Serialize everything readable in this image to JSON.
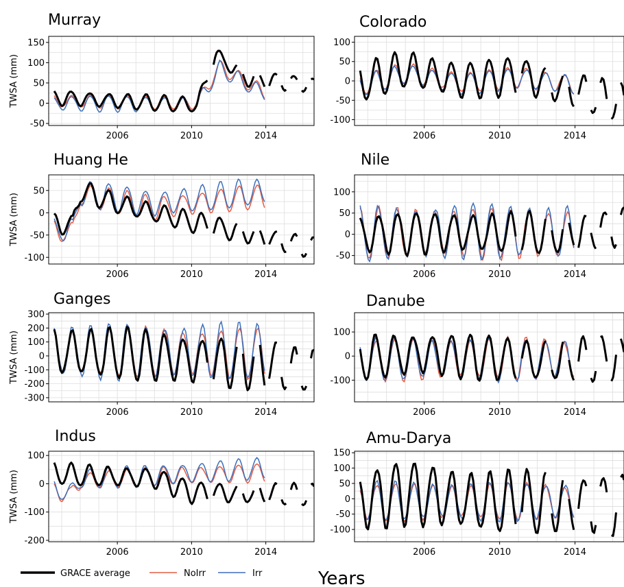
{
  "figure": {
    "xlabel": "Years",
    "legend": [
      {
        "label": "GRACE average",
        "color": "#000000"
      },
      {
        "label": "NoIrr",
        "color": "#e45c45"
      },
      {
        "label": "Irr",
        "color": "#3b6fba"
      }
    ],
    "legend_placement": "bottom-left",
    "grid": true
  },
  "chart_data": [
    {
      "type": "line",
      "title": "Murray",
      "ylabel": "TWSA (mm)",
      "xlim": [
        2002.3,
        2016.6
      ],
      "ylim": [
        -55,
        165
      ],
      "yticks": [
        -50,
        0,
        50,
        100,
        150
      ],
      "xticks": [
        2006,
        2010,
        2014
      ],
      "grace": {
        "mean": 20,
        "amp": 18,
        "season": 0.6,
        "drift": [
          [
            2002.3,
            15
          ],
          [
            2010.3,
            -5
          ],
          [
            2011.3,
            120
          ],
          [
            2013,
            60
          ],
          [
            2016.6,
            45
          ]
        ]
      },
      "noirr": {
        "amp": 16,
        "drift": [
          [
            2002.3,
            5
          ],
          [
            2010.3,
            0
          ],
          [
            2011.5,
            90
          ],
          [
            2014,
            25
          ]
        ]
      },
      "irr": {
        "amp": 18,
        "drift": [
          [
            2002.3,
            0
          ],
          [
            2010.3,
            -3
          ],
          [
            2011.5,
            85
          ],
          [
            2014,
            20
          ]
        ]
      }
    },
    {
      "type": "line",
      "title": "Colorado",
      "ylabel": "",
      "xlim": [
        2002.3,
        2016.6
      ],
      "ylim": [
        -115,
        115
      ],
      "yticks": [
        -100,
        -50,
        0,
        50,
        100
      ],
      "xticks": [
        2006,
        2010,
        2014
      ],
      "grace": {
        "amp": 45,
        "season": 0.3,
        "drift": [
          [
            2002.3,
            -10
          ],
          [
            2005,
            30
          ],
          [
            2008,
            0
          ],
          [
            2011,
            15
          ],
          [
            2016.6,
            -60
          ]
        ]
      },
      "noirr": {
        "amp": 25,
        "drift": [
          [
            2002.3,
            -15
          ],
          [
            2005,
            20
          ],
          [
            2008,
            -5
          ],
          [
            2011,
            10
          ],
          [
            2014,
            -10
          ]
        ]
      },
      "irr": {
        "amp": 25,
        "drift": [
          [
            2002.3,
            -18
          ],
          [
            2005,
            18
          ],
          [
            2008,
            -8
          ],
          [
            2011,
            8
          ],
          [
            2014,
            -12
          ]
        ]
      }
    },
    {
      "type": "line",
      "title": "Huang He",
      "ylabel": "TWSA (mm)",
      "xlim": [
        2002.3,
        2016.6
      ],
      "ylim": [
        -115,
        85
      ],
      "yticks": [
        -100,
        -50,
        0,
        50
      ],
      "xticks": [
        2006,
        2010,
        2014
      ],
      "grace": {
        "amp": 22,
        "season": 0.65,
        "drift": [
          [
            2002.3,
            -20
          ],
          [
            2003.6,
            -30
          ],
          [
            2004,
            50
          ],
          [
            2006,
            20
          ],
          [
            2010,
            -20
          ],
          [
            2016.6,
            -80
          ]
        ]
      },
      "noirr": {
        "amp": 25,
        "drift": [
          [
            2002.3,
            -40
          ],
          [
            2003.6,
            -45
          ],
          [
            2004,
            40
          ],
          [
            2008,
            10
          ],
          [
            2013,
            35
          ]
        ]
      },
      "irr": {
        "amp": 28,
        "drift": [
          [
            2002.3,
            -35
          ],
          [
            2003.6,
            -40
          ],
          [
            2004,
            45
          ],
          [
            2008,
            20
          ],
          [
            2013,
            45
          ]
        ]
      }
    },
    {
      "type": "line",
      "title": "Nile",
      "ylabel": "",
      "xlim": [
        2002.3,
        2016.6
      ],
      "ylim": [
        -70,
        140
      ],
      "yticks": [
        -50,
        0,
        50,
        100
      ],
      "xticks": [
        2006,
        2010,
        2014
      ],
      "grace": {
        "amp": 45,
        "season": 0.75,
        "drift": [
          [
            2002.3,
            0
          ],
          [
            2008,
            5
          ],
          [
            2014,
            0
          ],
          [
            2016.6,
            20
          ]
        ]
      },
      "noirr": {
        "amp": 55,
        "drift": [
          [
            2002.3,
            0
          ],
          [
            2008,
            5
          ],
          [
            2014,
            0
          ]
        ]
      },
      "irr": {
        "amp": 60,
        "drift": [
          [
            2002.3,
            0
          ],
          [
            2008,
            8
          ],
          [
            2014,
            2
          ]
        ]
      }
    },
    {
      "type": "line",
      "title": "Ganges",
      "ylabel": "TWSA (mm)",
      "xlim": [
        2002.3,
        2016.6
      ],
      "ylim": [
        -330,
        310
      ],
      "yticks": [
        -300,
        -200,
        -100,
        0,
        100,
        200,
        300
      ],
      "xticks": [
        2006,
        2010,
        2014
      ],
      "grace": {
        "amp": 170,
        "season": 0.7,
        "drift": [
          [
            2002.3,
            30
          ],
          [
            2006,
            20
          ],
          [
            2010,
            -30
          ],
          [
            2014,
            -60
          ],
          [
            2016.6,
            -120
          ]
        ]
      },
      "noirr": {
        "amp": 165,
        "drift": [
          [
            2002.3,
            30
          ],
          [
            2014,
            20
          ]
        ]
      },
      "irr": {
        "amp": 185,
        "drift": [
          [
            2002.3,
            35
          ],
          [
            2014,
            30
          ]
        ]
      }
    },
    {
      "type": "line",
      "title": "Danube",
      "ylabel": "",
      "xlim": [
        2002.3,
        2016.6
      ],
      "ylim": [
        -190,
        180
      ],
      "yticks": [
        -100,
        0,
        100
      ],
      "xticks": [
        2006,
        2010,
        2014
      ],
      "grace": {
        "amp": 85,
        "season": 0.25,
        "drift": [
          [
            2002.3,
            -10
          ],
          [
            2006,
            10
          ],
          [
            2012,
            -20
          ],
          [
            2016.6,
            -10
          ]
        ]
      },
      "noirr": {
        "amp": 80,
        "drift": [
          [
            2002.3,
            -15
          ],
          [
            2014,
            -10
          ]
        ]
      },
      "irr": {
        "amp": 82,
        "drift": [
          [
            2002.3,
            -15
          ],
          [
            2014,
            -10
          ]
        ]
      }
    },
    {
      "type": "line",
      "title": "Indus",
      "ylabel": "TWSA (mm)",
      "xlim": [
        2002.3,
        2016.6
      ],
      "ylim": [
        -205,
        115
      ],
      "yticks": [
        -200,
        -100,
        0,
        100
      ],
      "xticks": [
        2006,
        2010,
        2014
      ],
      "grace": {
        "amp": 35,
        "season": 0.55,
        "drift": [
          [
            2002.3,
            40
          ],
          [
            2004,
            30
          ],
          [
            2008,
            20
          ],
          [
            2010,
            -30
          ],
          [
            2016.6,
            -40
          ]
        ]
      },
      "noirr": {
        "amp": 30,
        "drift": [
          [
            2002.3,
            -20
          ],
          [
            2003.5,
            -40
          ],
          [
            2004,
            10
          ],
          [
            2008,
            25
          ],
          [
            2014,
            40
          ]
        ]
      },
      "irr": {
        "amp": 35,
        "drift": [
          [
            2002.3,
            -15
          ],
          [
            2003.5,
            -35
          ],
          [
            2004,
            15
          ],
          [
            2008,
            30
          ],
          [
            2014,
            55
          ]
        ]
      }
    },
    {
      "type": "line",
      "title": "Amu-Darya",
      "ylabel": "",
      "xlim": [
        2002.3,
        2016.6
      ],
      "ylim": [
        -140,
        155
      ],
      "yticks": [
        -100,
        -50,
        0,
        50,
        100,
        150
      ],
      "xticks": [
        2006,
        2010,
        2014
      ],
      "grace": {
        "amp": 95,
        "season": 0.4,
        "drift": [
          [
            2002.3,
            -10
          ],
          [
            2005,
            20
          ],
          [
            2009,
            -10
          ],
          [
            2016.6,
            -20
          ]
        ]
      },
      "noirr": {
        "amp": 55,
        "drift": [
          [
            2002.3,
            -10
          ],
          [
            2014,
            -10
          ]
        ]
      },
      "irr": {
        "amp": 58,
        "drift": [
          [
            2002.3,
            -8
          ],
          [
            2014,
            -8
          ]
        ]
      }
    }
  ]
}
